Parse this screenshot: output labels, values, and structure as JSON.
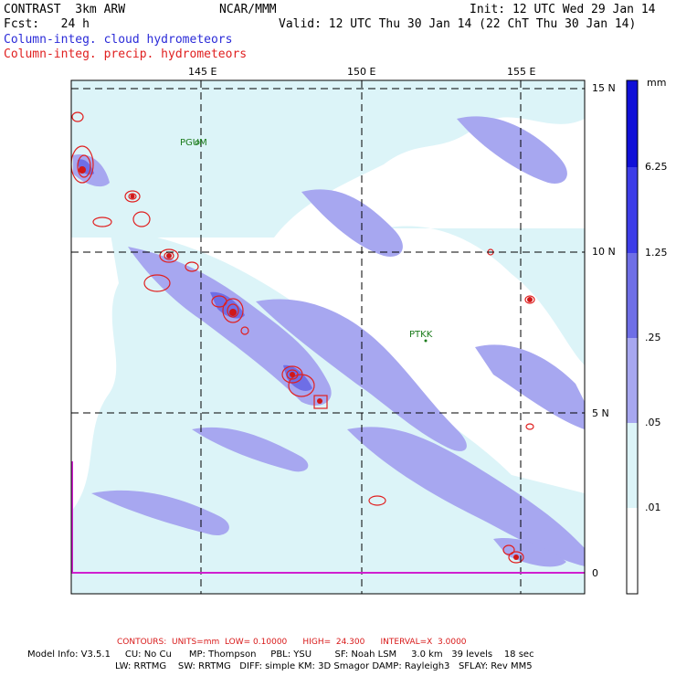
{
  "header": {
    "model": "CONTRAST  3km ARW",
    "org": "NCAR/MMM",
    "init": "Init: 12 UTC Wed 29 Jan 14",
    "fcst": "Fcst:   24 h",
    "valid": "Valid: 12 UTC Thu 30 Jan 14 (22 ChT Thu 30 Jan 14)",
    "field_fill": "Column-integ. cloud hydrometeors",
    "field_contour": "Column-integ. precip. hydrometeors"
  },
  "map": {
    "lon_labels": [
      "145 E",
      "150 E",
      "155 E"
    ],
    "lat_labels": [
      "15 N",
      "10 N",
      "5 N",
      "0"
    ],
    "stations": [
      "PGUM",
      "PTKK"
    ]
  },
  "colorbar": {
    "units": "mm",
    "levels": [
      "6.25",
      "1.25",
      ".25",
      ".05",
      ".01"
    ],
    "colors": [
      "#1010d8",
      "#3d3de8",
      "#6e6ee6",
      "#a7a7f0",
      "#dcf4f8",
      "#ffffff"
    ]
  },
  "footer": {
    "contours": "CONTOURS:  UNITS=mm  LOW= 0.10000      HIGH=  24.300      INTERVAL=X  3.0000",
    "line1": "Model Info: V3.5.1     CU: No Cu      MP: Thompson     PBL: YSU        SF: Noah LSM     3.0 km   39 levels    18 sec",
    "line2": "LW: RRTMG    SW: RRTMG   DIFF: simple KM: 3D Smagor DAMP: Rayleigh3   SFLAY: Rev MM5"
  },
  "colors": {
    "fill_light": "#dcf4f8",
    "fill_mid": "#a7a7f0",
    "precip_contour": "#e02020",
    "boundary": "#d020d0"
  }
}
